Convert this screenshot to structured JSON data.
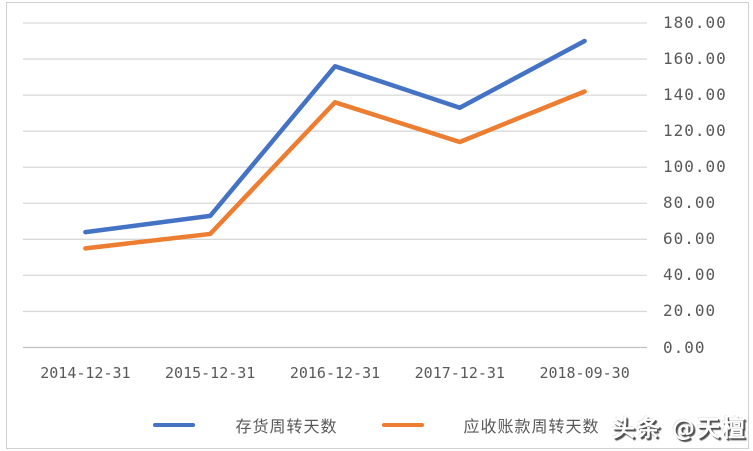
{
  "chart_data": {
    "type": "line",
    "categories": [
      "2014-12-31",
      "2015-12-31",
      "2016-12-31",
      "2017-12-31",
      "2018-09-30"
    ],
    "series": [
      {
        "name": "存货周转天数",
        "color": "#4472C4",
        "values": [
          64,
          73,
          156,
          133,
          170
        ]
      },
      {
        "name": "应收账款周转天数",
        "color": "#ED7D31",
        "values": [
          55,
          63,
          136,
          114,
          142
        ]
      }
    ],
    "title": "",
    "xlabel": "",
    "ylabel": "",
    "ylim": [
      0,
      180
    ],
    "ytick_step": 20,
    "ytick_labels": [
      "0.00",
      "20.00",
      "40.00",
      "60.00",
      "80.00",
      "100.00",
      "120.00",
      "140.00",
      "160.00",
      "180.00"
    ],
    "yaxis_side": "right",
    "grid": "horizontal",
    "legend_position": "bottom"
  },
  "watermark": {
    "text": "头条 @天檀"
  },
  "colors": {
    "gridline": "#D9D9D9",
    "axis": "#BFBFBF",
    "tick_label": "#595959",
    "border": "#D0D0D0",
    "background": "#FFFFFF"
  }
}
